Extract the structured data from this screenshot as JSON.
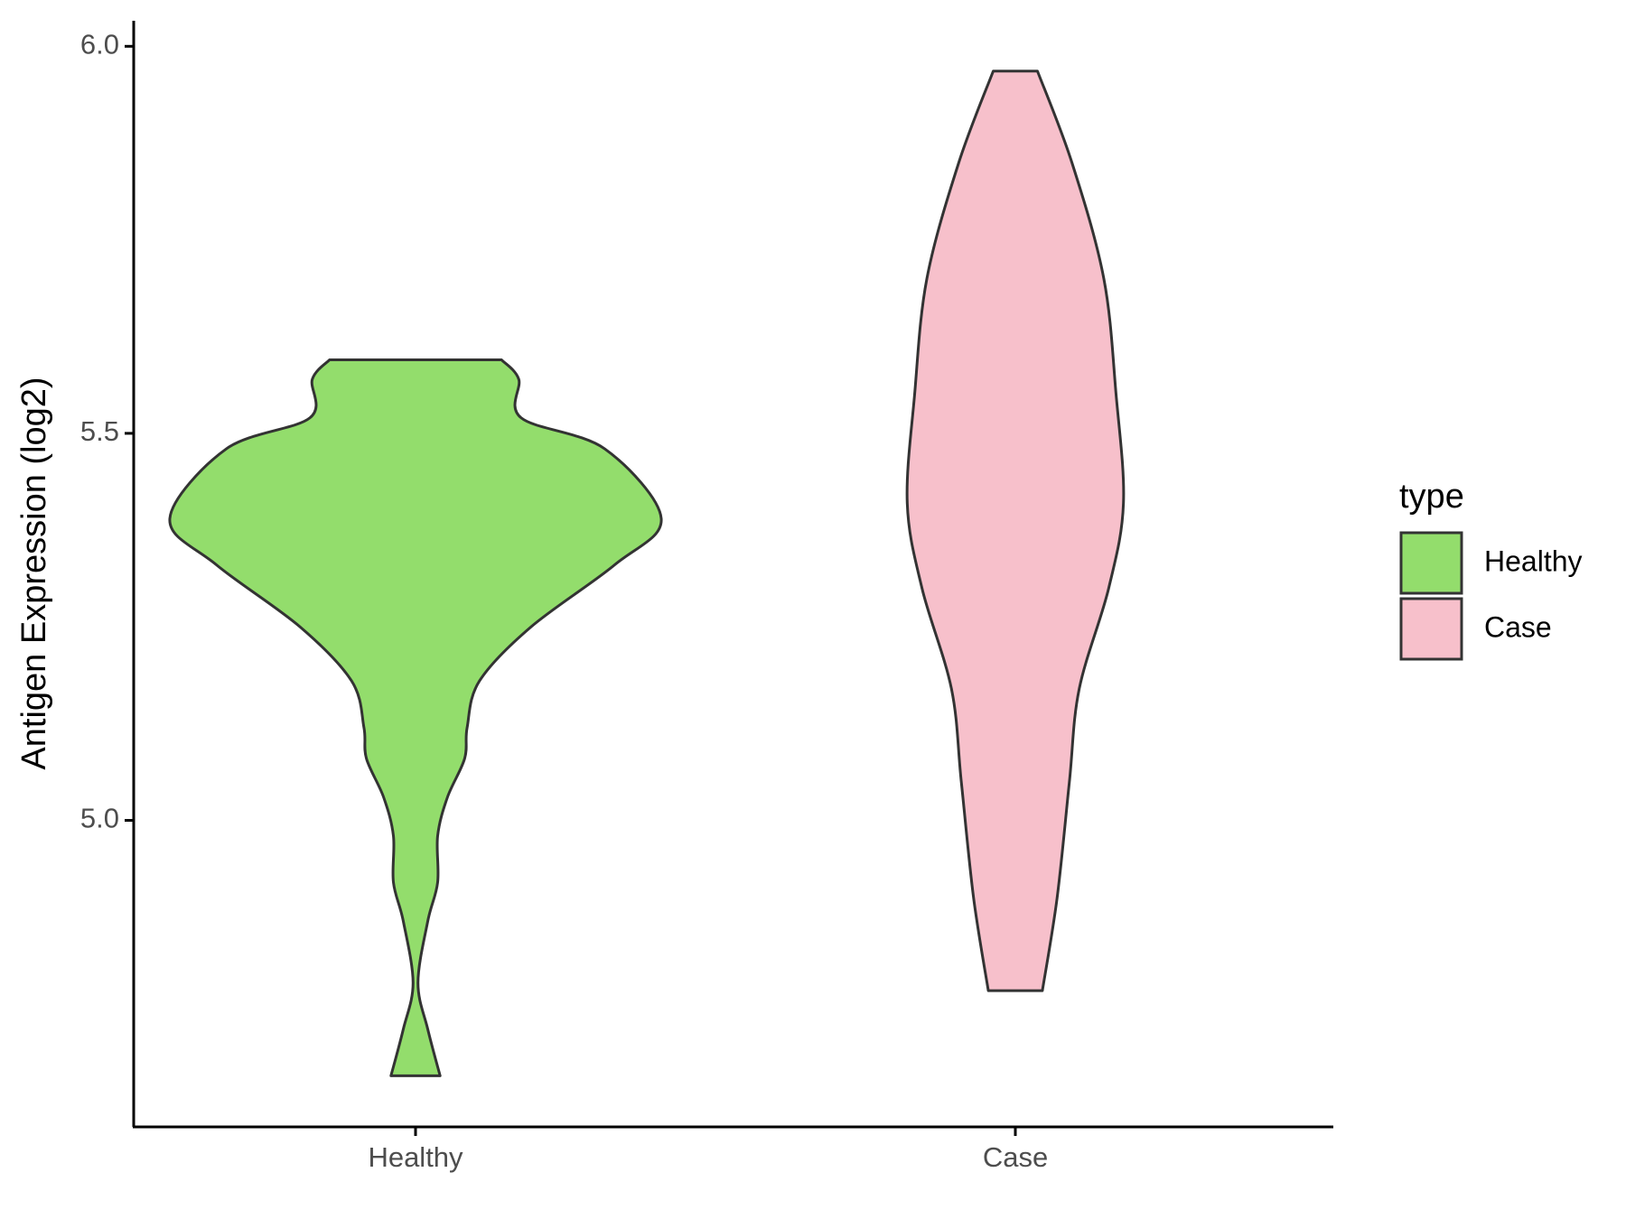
{
  "chart_data": {
    "type": "violin",
    "y_label": "Antigen Expression (log2)",
    "legend_title": "type",
    "categories": [
      "Healthy",
      "Case"
    ],
    "ylim": [
      4.604,
      6.033
    ],
    "yticks": [
      {
        "value": 5,
        "label": "5.0"
      },
      {
        "value": 5.5,
        "label": "5.5"
      },
      {
        "value": 6,
        "label": "6.0"
      }
    ],
    "series": [
      {
        "name": "Healthy",
        "color": "#93dd6c",
        "y": [
          5.595,
          5.57,
          5.52,
          5.48,
          5.39,
          5.33,
          5.25,
          5.18,
          5.12,
          5.08,
          5.03,
          4.98,
          4.92,
          4.87,
          4.79,
          4.73,
          4.67
        ],
        "width": [
          0.35,
          0.42,
          0.43,
          0.77,
          1,
          0.81,
          0.47,
          0.26,
          0.21,
          0.2,
          0.13,
          0.09,
          0.09,
          0.05,
          0.01,
          0.05,
          0.1
        ]
      },
      {
        "name": "Case",
        "color": "#f7c0cb",
        "y": [
          5.968,
          5.85,
          5.7,
          5.55,
          5.41,
          5.3,
          5.17,
          5.05,
          4.9,
          4.78
        ],
        "width": [
          0.09,
          0.23,
          0.36,
          0.41,
          0.44,
          0.38,
          0.26,
          0.22,
          0.17,
          0.11
        ]
      }
    ]
  }
}
